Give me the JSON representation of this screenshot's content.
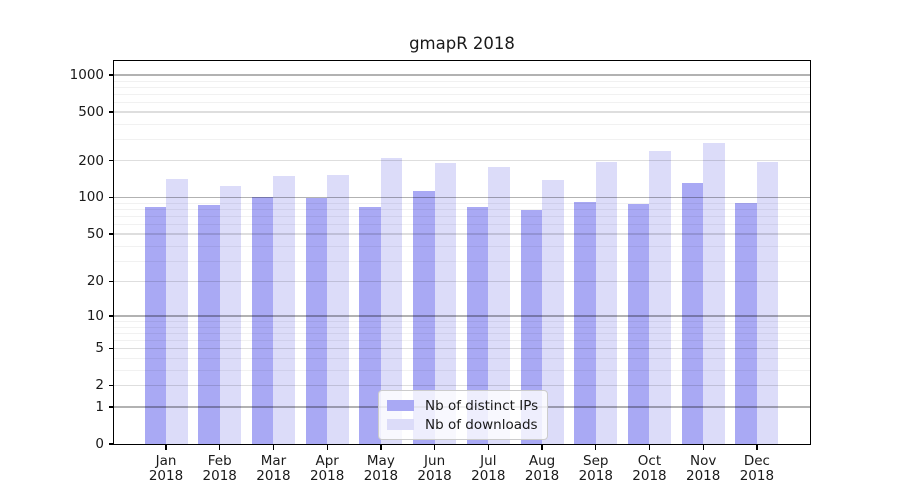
{
  "chart_data": {
    "type": "bar",
    "title": "gmapR 2018",
    "months": [
      "Jan",
      "Feb",
      "Mar",
      "Apr",
      "May",
      "Jun",
      "Jul",
      "Aug",
      "Sep",
      "Oct",
      "Nov",
      "Dec"
    ],
    "year": "2018",
    "categories": [
      "Jan 2018",
      "Feb 2018",
      "Mar 2018",
      "Apr 2018",
      "May 2018",
      "Jun 2018",
      "Jul 2018",
      "Aug 2018",
      "Sep 2018",
      "Oct 2018",
      "Nov 2018",
      "Dec 2018"
    ],
    "series": [
      {
        "name": "Nb of distinct IPs",
        "key": "distinct-ips",
        "color": "#a9a9f4",
        "values": [
          83,
          86,
          101,
          99,
          84,
          112,
          83,
          79,
          91,
          88,
          131,
          90
        ]
      },
      {
        "name": "Nb of downloads",
        "key": "downloads",
        "color": "#dcdcf9",
        "values": [
          142,
          124,
          149,
          154,
          210,
          190,
          178,
          140,
          197,
          240,
          279,
          196
        ]
      }
    ],
    "y_scale": "log10(1+x)",
    "y_ticks": [
      0,
      1,
      2,
      5,
      10,
      20,
      50,
      100,
      200,
      500,
      1000
    ],
    "y_minor_ticks": [
      3,
      4,
      6,
      7,
      8,
      9,
      30,
      40,
      60,
      70,
      80,
      90,
      300,
      400,
      600,
      700,
      800,
      900
    ],
    "ylim": [
      0,
      1300
    ],
    "grid": true,
    "legend_position": "lower center"
  }
}
